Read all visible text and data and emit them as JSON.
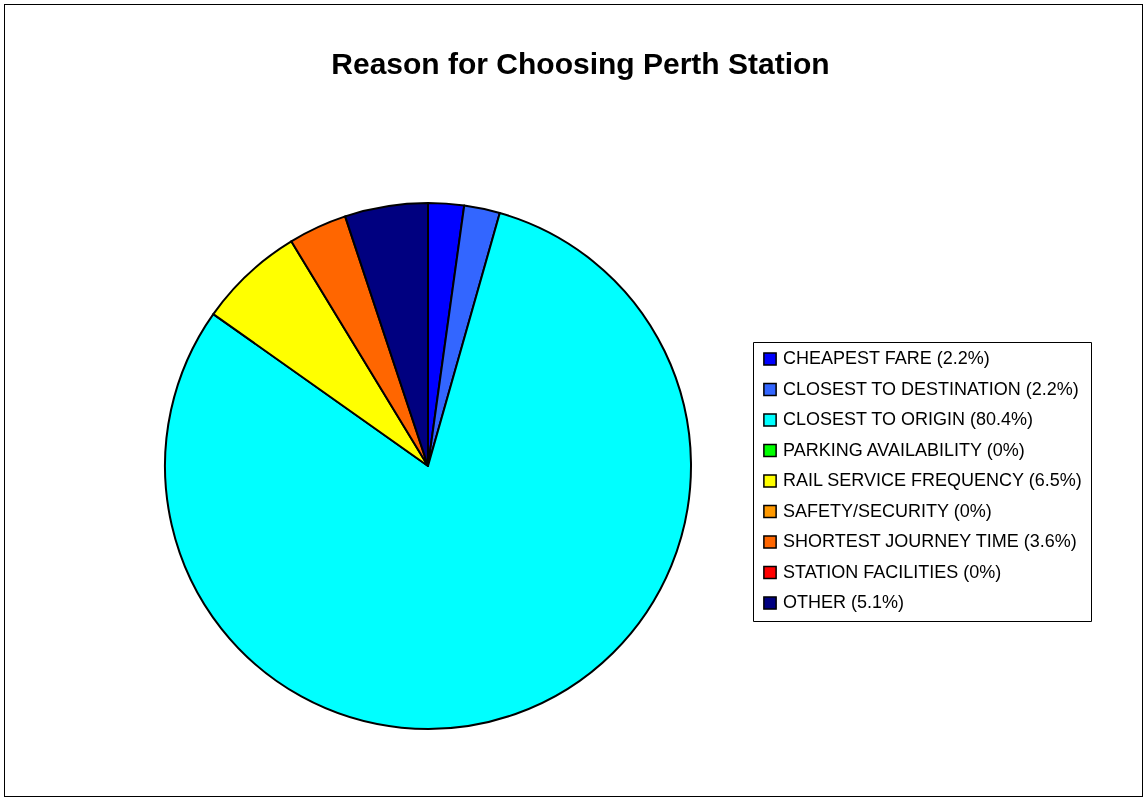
{
  "chart_data": {
    "type": "pie",
    "title": "Reason for Choosing Perth Station",
    "categories": [
      "CHEAPEST FARE (2.2%)",
      "CLOSEST TO DESTINATION (2.2%)",
      "CLOSEST TO ORIGIN (80.4%)",
      "PARKING AVAILABILITY (0%)",
      "RAIL SERVICE FREQUENCY (6.5%)",
      "SAFETY/SECURITY (0%)",
      "SHORTEST JOURNEY TIME (3.6%)",
      "STATION FACILITIES (0%)",
      "OTHER (5.1%)"
    ],
    "values": [
      2.2,
      2.2,
      80.4,
      0,
      6.5,
      0,
      3.6,
      0,
      5.1
    ],
    "colors": [
      "#0000ff",
      "#3366ff",
      "#00ffff",
      "#00ff00",
      "#ffff00",
      "#ff9900",
      "#ff6600",
      "#ff0000",
      "#000080"
    ],
    "legend": "right"
  }
}
